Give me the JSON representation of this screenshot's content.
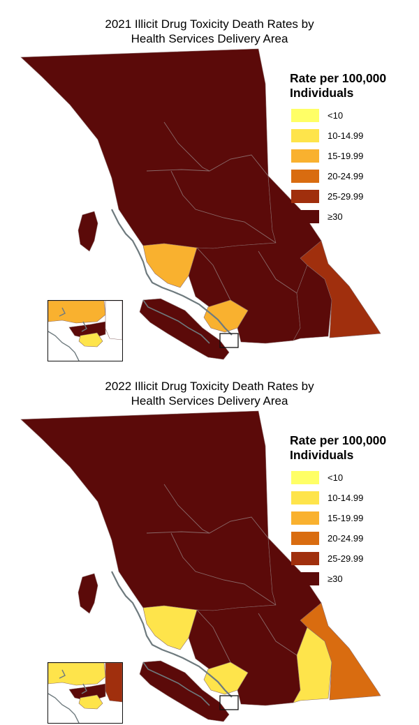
{
  "colors": {
    "lt10": "#ffff66",
    "r10_14": "#fee44b",
    "r15_19": "#f9b12f",
    "r20_24": "#d96c10",
    "r25_29": "#a02f0d",
    "ge30": "#5b0a09",
    "coast": "#6e7a7e",
    "boundary": "#8a6a6a"
  },
  "legend": {
    "title_line1": "Rate per 100,000",
    "title_line2": "Individuals",
    "items": [
      {
        "label": "<10",
        "color": "#ffff66"
      },
      {
        "label": "10-14.99",
        "color": "#fee44b"
      },
      {
        "label": "15-19.99",
        "color": "#f9b12f"
      },
      {
        "label": "20-24.99",
        "color": "#d96c10"
      },
      {
        "label": "25-29.99",
        "color": "#a02f0d"
      },
      {
        "label": "≥30",
        "color": "#5b0a09"
      }
    ]
  },
  "maps": [
    {
      "title_line1": "2021 Illicit Drug Toxicity Death Rates by",
      "title_line2": "Health Services Delivery Area",
      "region_colors": {
        "north": "#5b0a09",
        "interior": "#5b0a09",
        "kootenay_east": "#a02f0d",
        "kootenay_boundary": "#5b0a09",
        "vancouver_island": "#5b0a09",
        "coastal_north": "#f9b12f",
        "fraser_east": "#f9b12f",
        "inset_north": "#f9b12f",
        "inset_south": "#fee44b",
        "inset_east": "#ffffff"
      }
    },
    {
      "title_line1": "2022 Illicit Drug Toxicity Death Rates by",
      "title_line2": "Health Services Delivery Area",
      "region_colors": {
        "north": "#5b0a09",
        "interior": "#5b0a09",
        "kootenay_east": "#d96c10",
        "kootenay_boundary": "#fee44b",
        "vancouver_island": "#5b0a09",
        "coastal_north": "#fee44b",
        "fraser_east": "#fee44b",
        "inset_north": "#fee44b",
        "inset_south": "#fee44b",
        "inset_east": "#a02f0d"
      }
    }
  ]
}
